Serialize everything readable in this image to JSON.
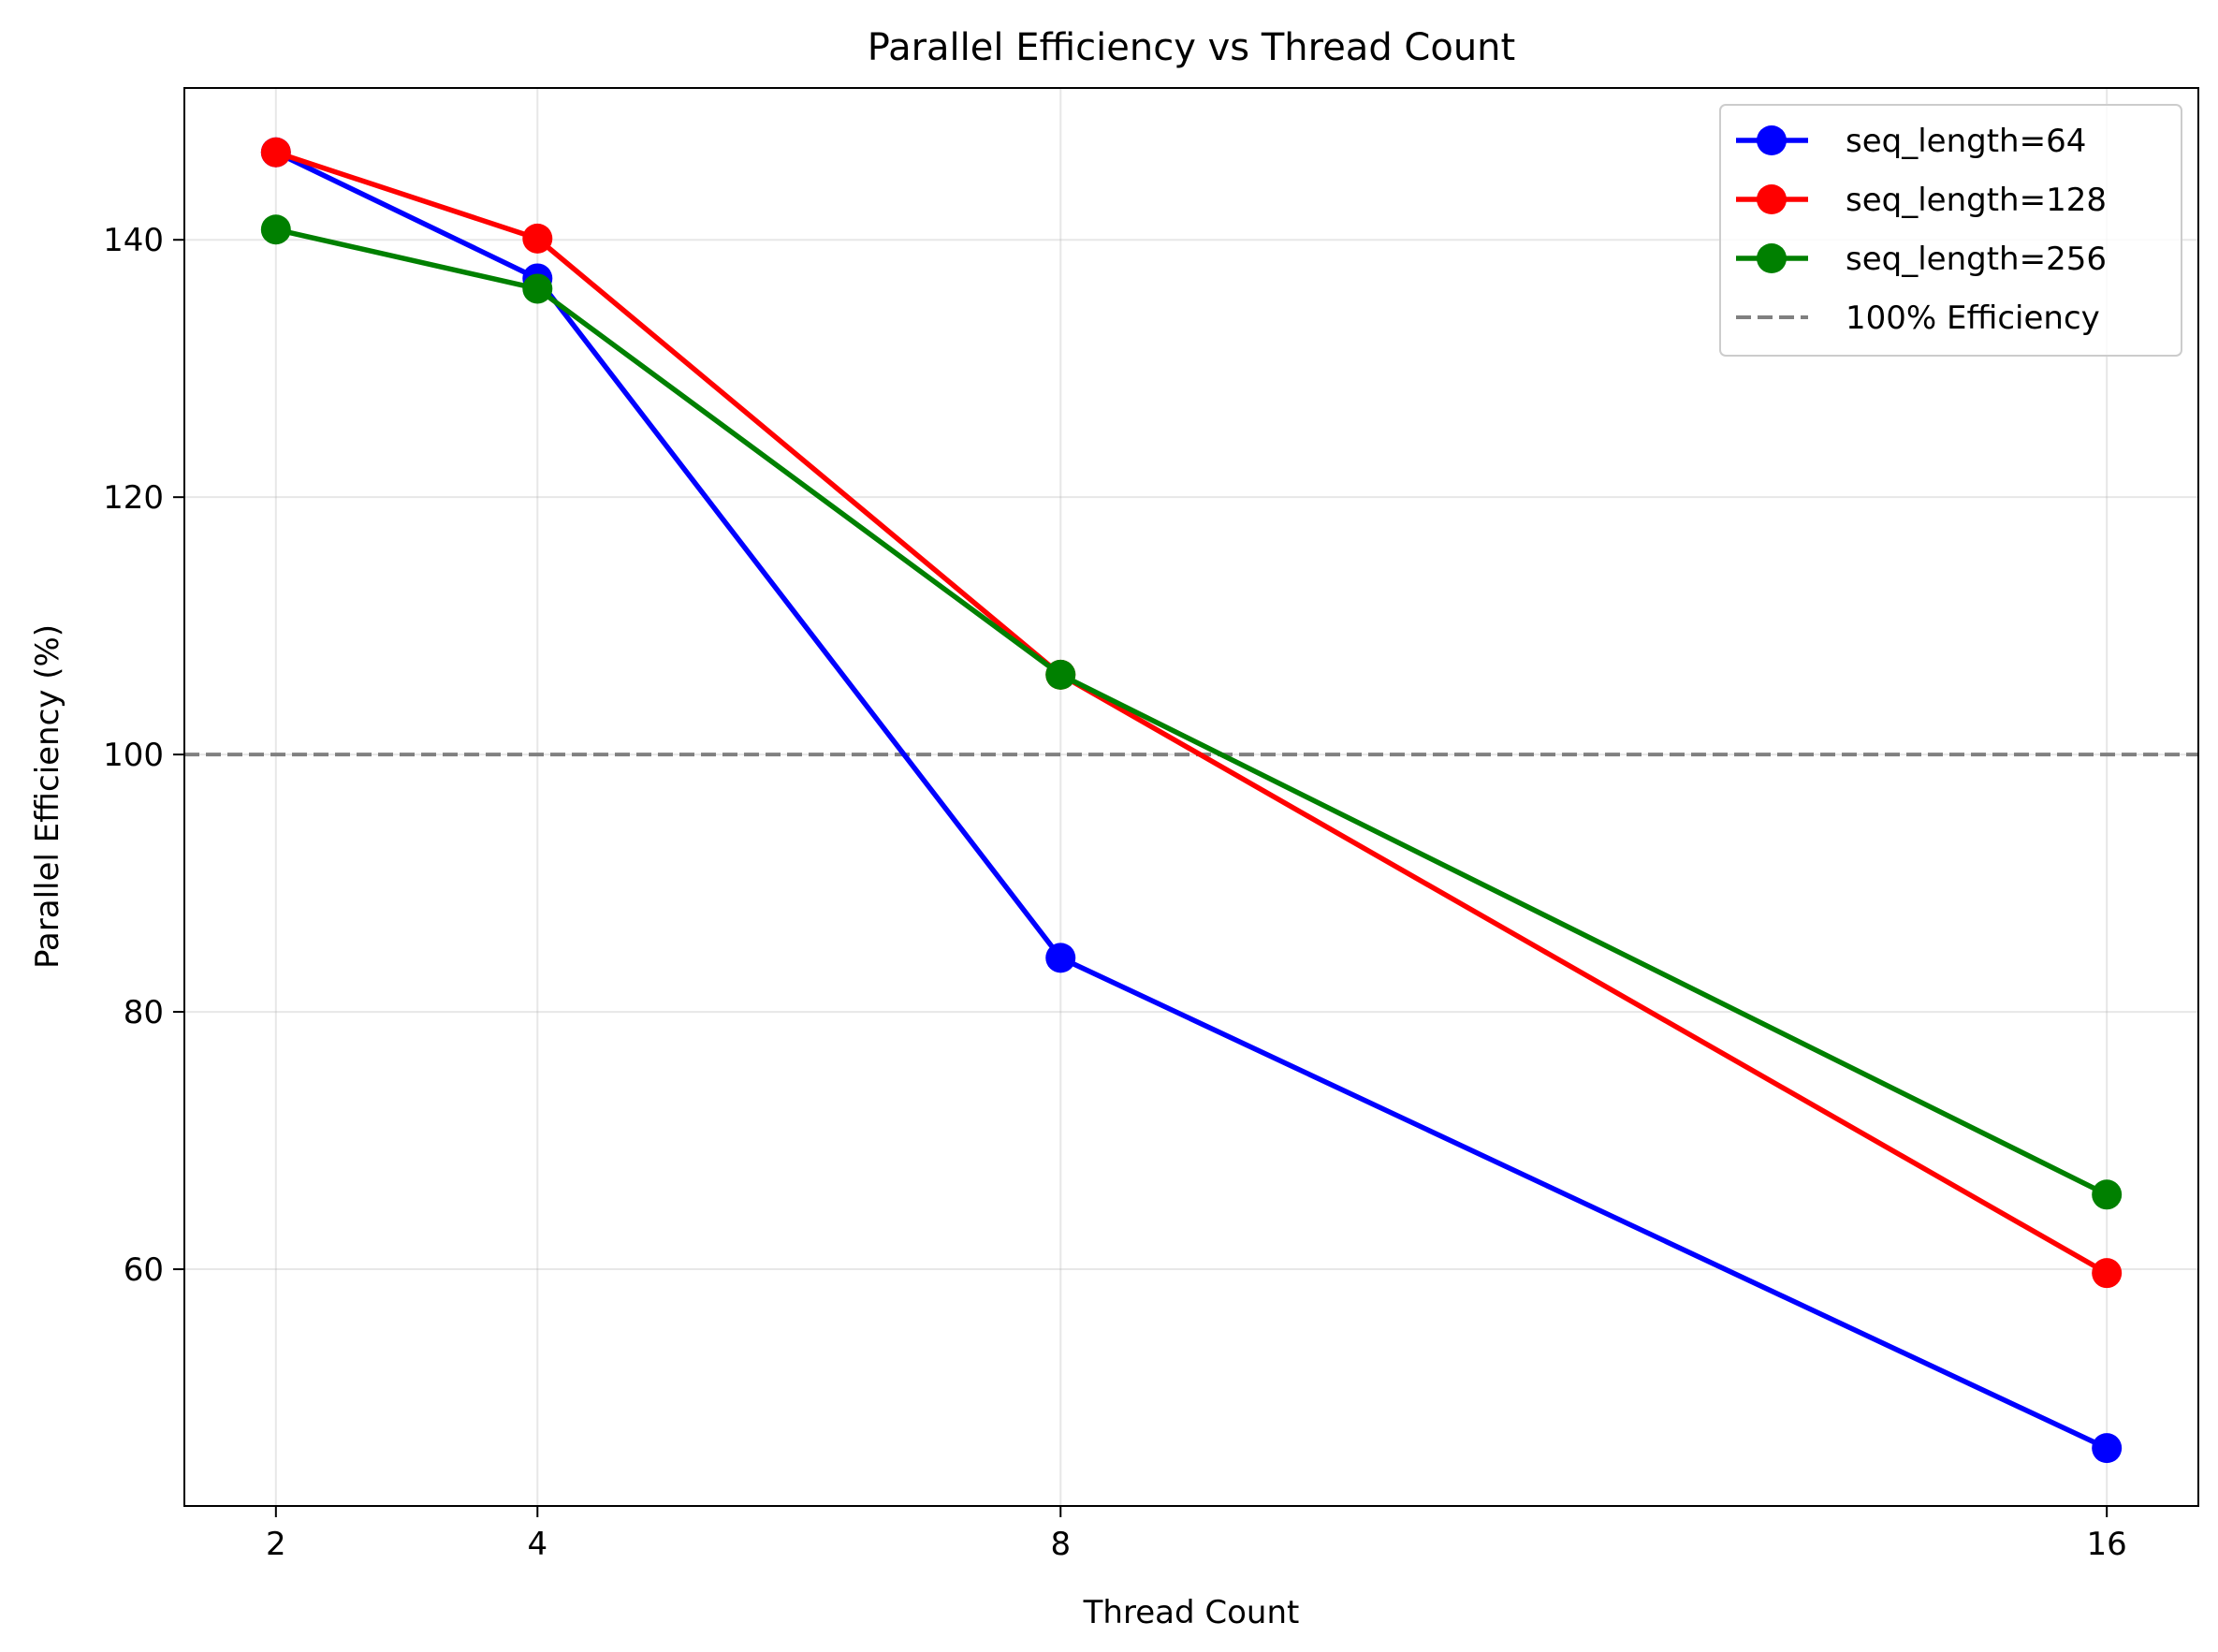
{
  "chart_data": {
    "type": "line",
    "title": "Parallel Efficiency vs Thread Count",
    "xlabel": "Thread Count",
    "ylabel": "Parallel Efficiency (%)",
    "x": [
      2,
      4,
      8,
      16
    ],
    "xticks": [
      2,
      4,
      8,
      16
    ],
    "yticks": [
      60,
      80,
      100,
      120,
      140
    ],
    "xlim": [
      1.3,
      16.7
    ],
    "ylim": [
      41.6,
      151.8
    ],
    "grid": true,
    "legend_position": "top-right",
    "series": [
      {
        "name": "seq_length=64",
        "color": "#0000ff",
        "values": [
          146.8,
          137.0,
          84.2,
          46.1
        ]
      },
      {
        "name": "seq_length=128",
        "color": "#ff0000",
        "values": [
          146.8,
          140.1,
          106.2,
          59.7
        ]
      },
      {
        "name": "seq_length=256",
        "color": "#008000",
        "values": [
          140.8,
          136.2,
          106.2,
          65.8
        ]
      }
    ],
    "reference_line": {
      "name": "100% Efficiency",
      "y": 100,
      "color": "#808080",
      "style": "dashed"
    }
  }
}
